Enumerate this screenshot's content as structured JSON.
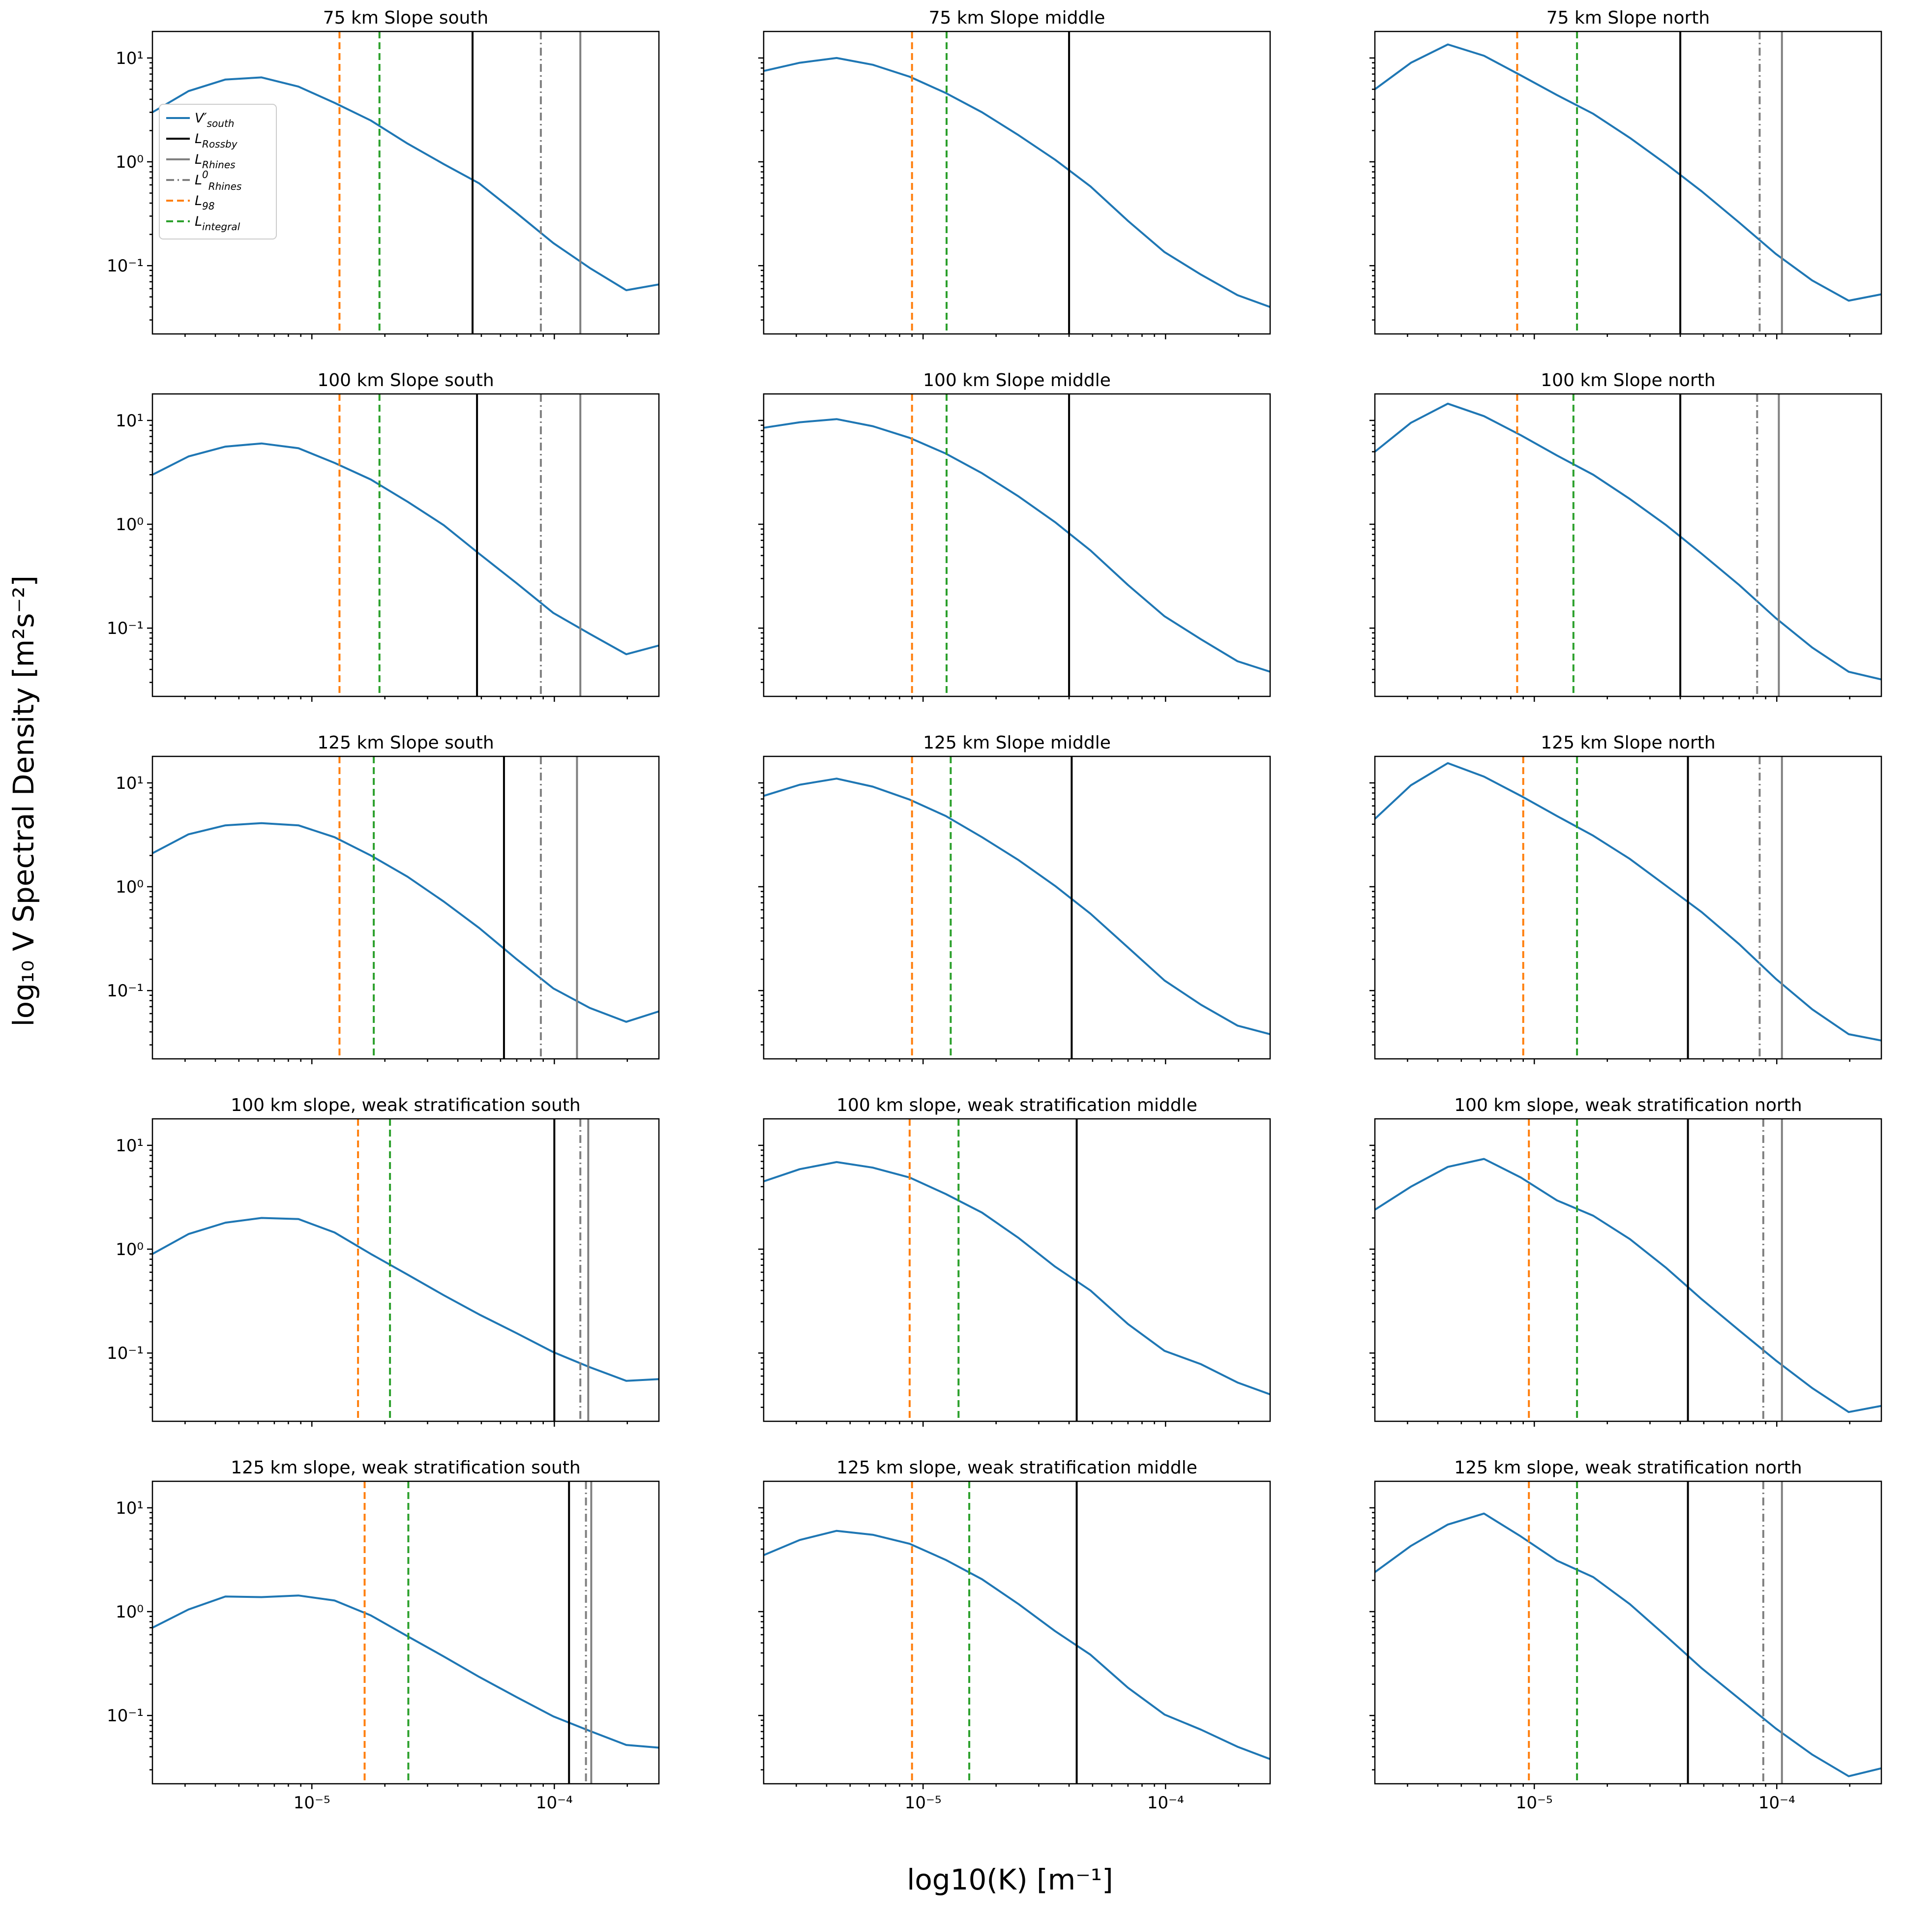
{
  "figure": {
    "xlabel": "log10(K) [m⁻¹]",
    "ylabel": "log₁₀ V Spectral Density [m²s⁻²]"
  },
  "chart_data": {
    "type": "line",
    "x_scale": "log",
    "y_scale": "log",
    "grid": false,
    "legend_position": "upper-left-of-first-subplot",
    "xlim": [
      2.2e-06,
      0.00027
    ],
    "ylim": [
      0.022,
      18
    ],
    "xticks": [
      {
        "value": 1e-05,
        "label": "10⁻⁵"
      },
      {
        "value": 0.0001,
        "label": "10⁻⁴"
      }
    ],
    "yticks": [
      {
        "value": 10,
        "label": "10¹"
      },
      {
        "value": 1,
        "label": "10⁰"
      },
      {
        "value": 0.1,
        "label": "10⁻¹"
      }
    ],
    "series_color": "#1f77b4",
    "vline_styles": {
      "rossby": {
        "color": "#000000",
        "dash": null,
        "label": "L_Rossby"
      },
      "rhines": {
        "color": "#808080",
        "dash": null,
        "label": "L_Rhines"
      },
      "rhines0": {
        "color": "#808080",
        "dash": "16 7 3 7",
        "label": "L0_Rhines"
      },
      "l98": {
        "color": "#ff7f0e",
        "dash": "14 8",
        "label": "L_98"
      },
      "integral": {
        "color": "#2ca02c",
        "dash": "14 8",
        "label": "L_integral"
      }
    },
    "legend": {
      "entries": [
        {
          "main": "V′",
          "sub": "south",
          "color": "#1f77b4",
          "dash": "solid"
        },
        {
          "main": "L",
          "sub": "Rossby",
          "color": "#000000",
          "dash": "solid"
        },
        {
          "main": "L",
          "sub": "Rhines",
          "color": "#808080",
          "dash": "solid"
        },
        {
          "main": "L",
          "sup": "0",
          "sub": "Rhines",
          "color": "#808080",
          "dash": "dashdot"
        },
        {
          "main": "L",
          "sub": "98",
          "color": "#ff7f0e",
          "dash": "dashed"
        },
        {
          "main": "L",
          "sub": "integral",
          "color": "#2ca02c",
          "dash": "dashed"
        }
      ]
    },
    "x": [
      2.2e-06,
      3.1e-06,
      4.4e-06,
      6.2e-06,
      8.8e-06,
      1.24e-05,
      1.75e-05,
      2.48e-05,
      3.5e-05,
      4.9e-05,
      7e-05,
      9.9e-05,
      0.00014,
      0.000198,
      0.00027
    ],
    "subplots": [
      {
        "title": "75 km Slope south",
        "show_legend": true,
        "y": [
          3.0,
          4.8,
          6.2,
          6.5,
          5.3,
          3.7,
          2.5,
          1.5,
          0.95,
          0.62,
          0.32,
          0.165,
          0.095,
          0.058,
          0.066
        ],
        "vlines": {
          "l98": 1.3e-05,
          "integral": 1.9e-05,
          "rossby": 4.6e-05,
          "rhines0": 8.8e-05,
          "rhines": 0.000128
        }
      },
      {
        "title": "75 km Slope middle",
        "y": [
          7.5,
          9.0,
          10.0,
          8.6,
          6.6,
          4.6,
          3.0,
          1.8,
          1.05,
          0.58,
          0.27,
          0.135,
          0.082,
          0.052,
          0.04
        ],
        "vlines": {
          "l98": 9e-06,
          "integral": 1.25e-05,
          "rossby": 4e-05
        }
      },
      {
        "title": "75 km Slope north",
        "y": [
          5.0,
          9.0,
          13.5,
          10.5,
          6.8,
          4.4,
          2.9,
          1.7,
          0.95,
          0.52,
          0.26,
          0.13,
          0.072,
          0.046,
          0.053
        ],
        "vlines": {
          "l98": 8.5e-06,
          "integral": 1.5e-05,
          "rossby": 4e-05,
          "rhines0": 8.5e-05,
          "rhines": 0.000105
        }
      },
      {
        "title": "100 km Slope south",
        "y": [
          3.0,
          4.5,
          5.6,
          6.0,
          5.4,
          3.9,
          2.7,
          1.65,
          0.98,
          0.52,
          0.27,
          0.14,
          0.088,
          0.056,
          0.068
        ],
        "vlines": {
          "l98": 1.3e-05,
          "integral": 1.9e-05,
          "rossby": 4.8e-05,
          "rhines0": 8.8e-05,
          "rhines": 0.000128
        }
      },
      {
        "title": "100 km Slope middle",
        "y": [
          8.5,
          9.6,
          10.3,
          8.8,
          6.8,
          4.8,
          3.1,
          1.85,
          1.05,
          0.56,
          0.26,
          0.13,
          0.078,
          0.048,
          0.038
        ],
        "vlines": {
          "l98": 9e-06,
          "integral": 1.25e-05,
          "rossby": 4e-05
        }
      },
      {
        "title": "100 km Slope north",
        "y": [
          5.0,
          9.5,
          14.5,
          11.0,
          7.2,
          4.6,
          3.0,
          1.75,
          0.98,
          0.52,
          0.26,
          0.125,
          0.065,
          0.038,
          0.032
        ],
        "vlines": {
          "l98": 8.5e-06,
          "integral": 1.45e-05,
          "rossby": 4e-05,
          "rhines0": 8.3e-05,
          "rhines": 0.000102
        }
      },
      {
        "title": "125 km Slope south",
        "y": [
          2.1,
          3.2,
          3.9,
          4.1,
          3.9,
          3.0,
          2.0,
          1.25,
          0.72,
          0.4,
          0.2,
          0.105,
          0.068,
          0.05,
          0.063
        ],
        "vlines": {
          "l98": 1.3e-05,
          "integral": 1.8e-05,
          "rossby": 6.2e-05,
          "rhines0": 8.8e-05,
          "rhines": 0.000124
        }
      },
      {
        "title": "125 km Slope middle",
        "y": [
          7.5,
          9.6,
          11.0,
          9.2,
          6.9,
          4.8,
          3.0,
          1.8,
          1.02,
          0.55,
          0.26,
          0.125,
          0.073,
          0.046,
          0.038
        ],
        "vlines": {
          "l98": 9e-06,
          "integral": 1.3e-05,
          "rossby": 4.1e-05
        }
      },
      {
        "title": "125 km Slope north",
        "y": [
          4.5,
          9.5,
          15.5,
          11.5,
          7.5,
          4.8,
          3.1,
          1.85,
          1.02,
          0.57,
          0.28,
          0.13,
          0.066,
          0.038,
          0.033
        ],
        "vlines": {
          "l98": 9e-06,
          "integral": 1.5e-05,
          "rossby": 4.3e-05,
          "rhines0": 8.5e-05,
          "rhines": 0.000105
        }
      },
      {
        "title": "100 km slope, weak stratification south",
        "y": [
          0.9,
          1.4,
          1.8,
          2.0,
          1.95,
          1.45,
          0.9,
          0.57,
          0.36,
          0.235,
          0.155,
          0.102,
          0.073,
          0.054,
          0.056
        ],
        "vlines": {
          "l98": 1.55e-05,
          "integral": 2.1e-05,
          "rossby": 0.0001,
          "rhines0": 0.000128,
          "rhines": 0.000138
        }
      },
      {
        "title": "100 km slope, weak stratification middle",
        "y": [
          4.5,
          5.9,
          6.9,
          6.1,
          4.9,
          3.4,
          2.25,
          1.28,
          0.68,
          0.4,
          0.19,
          0.105,
          0.078,
          0.052,
          0.04
        ],
        "vlines": {
          "l98": 8.8e-06,
          "integral": 1.4e-05,
          "rossby": 4.3e-05
        }
      },
      {
        "title": "100 km slope, weak stratification north",
        "y": [
          2.4,
          4.0,
          6.2,
          7.4,
          4.9,
          2.95,
          2.1,
          1.25,
          0.66,
          0.33,
          0.165,
          0.085,
          0.046,
          0.027,
          0.031
        ],
        "vlines": {
          "l98": 9.5e-06,
          "integral": 1.5e-05,
          "rossby": 4.3e-05,
          "rhines0": 8.8e-05,
          "rhines": 0.000105
        }
      },
      {
        "title": "125 km slope, weak stratification south",
        "y": [
          0.7,
          1.05,
          1.4,
          1.38,
          1.43,
          1.28,
          0.92,
          0.58,
          0.37,
          0.235,
          0.15,
          0.098,
          0.071,
          0.052,
          0.049
        ],
        "vlines": {
          "l98": 1.65e-05,
          "integral": 2.5e-05,
          "rossby": 0.000115,
          "rhines0": 0.000135,
          "rhines": 0.000142
        }
      },
      {
        "title": "125 km slope, weak stratification middle",
        "y": [
          3.5,
          4.9,
          6.0,
          5.5,
          4.5,
          3.15,
          2.05,
          1.18,
          0.65,
          0.385,
          0.185,
          0.102,
          0.073,
          0.05,
          0.038
        ],
        "vlines": {
          "l98": 9e-06,
          "integral": 1.55e-05,
          "rossby": 4.3e-05
        }
      },
      {
        "title": "125 km slope, weak stratification north",
        "y": [
          2.4,
          4.3,
          6.9,
          8.8,
          5.3,
          3.1,
          2.15,
          1.18,
          0.58,
          0.285,
          0.145,
          0.075,
          0.042,
          0.026,
          0.031
        ],
        "vlines": {
          "l98": 9.5e-06,
          "integral": 1.5e-05,
          "rossby": 4.3e-05,
          "rhines0": 8.8e-05,
          "rhines": 0.000105
        }
      }
    ]
  }
}
